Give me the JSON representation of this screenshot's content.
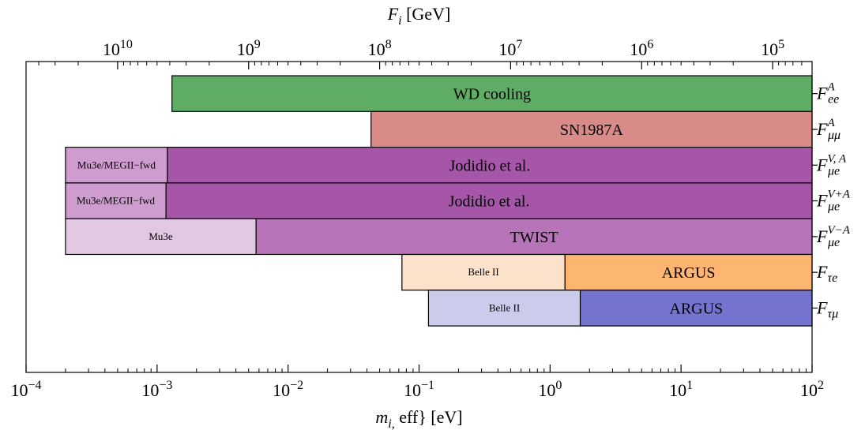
{
  "chart_data": {
    "type": "bar",
    "orientation": "horizontal",
    "x_scale": "log",
    "xlim": [
      0.0001,
      100
    ],
    "xlabel": "m_{i, eff} [eV]",
    "x_ticks": [
      {
        "value": 0.0001,
        "base": "10",
        "exp": "−4"
      },
      {
        "value": 0.001,
        "base": "10",
        "exp": "−3"
      },
      {
        "value": 0.01,
        "base": "10",
        "exp": "−2"
      },
      {
        "value": 0.1,
        "base": "10",
        "exp": "−1"
      },
      {
        "value": 1,
        "base": "10",
        "exp": "0"
      },
      {
        "value": 10,
        "base": "10",
        "exp": "1"
      },
      {
        "value": 100,
        "base": "10",
        "exp": "2"
      }
    ],
    "top_axis": {
      "label": "F_i [GeV]",
      "scale": "log",
      "ticks": [
        {
          "m_eff": 0.0005,
          "base": "10",
          "exp": "10"
        },
        {
          "m_eff": 0.005,
          "base": "10",
          "exp": "9"
        },
        {
          "m_eff": 0.05,
          "base": "10",
          "exp": "8"
        },
        {
          "m_eff": 0.5,
          "base": "10",
          "exp": "7"
        },
        {
          "m_eff": 5,
          "base": "10",
          "exp": "6"
        },
        {
          "m_eff": 50,
          "base": "10",
          "exp": "5"
        }
      ]
    },
    "grid": false,
    "rows": [
      {
        "label": {
          "main": "F",
          "sub": "ee",
          "sup": "A"
        },
        "bars": [
          {
            "label": "WD cooling",
            "from": 0.0013,
            "to": 100,
            "color": "#5fad64",
            "label_size": "large"
          }
        ]
      },
      {
        "label": {
          "main": "F",
          "sub": "μμ",
          "sup": "A"
        },
        "bars": [
          {
            "label": "SN1987A",
            "from": 0.043,
            "to": 100,
            "color": "#d88b89",
            "label_size": "large"
          }
        ]
      },
      {
        "label": {
          "main": "F",
          "sub": "μe",
          "sup": "V, A"
        },
        "bars": [
          {
            "label": "Mu3e/MEGII−fwd",
            "from": 0.0002,
            "to": 0.0012,
            "color": "#cf9ccf",
            "label_size": "small"
          },
          {
            "label": "Jodidio et al.",
            "from": 0.0012,
            "to": 100,
            "color": "#a656a8",
            "label_size": "large"
          }
        ]
      },
      {
        "label": {
          "main": "F",
          "sub": "μe",
          "sup": "V+A"
        },
        "bars": [
          {
            "label": "Mu3e/MEGII−fwd",
            "from": 0.0002,
            "to": 0.00117,
            "color": "#cf9ccf",
            "label_size": "small"
          },
          {
            "label": "Jodidio et al.",
            "from": 0.00117,
            "to": 100,
            "color": "#a656a8",
            "label_size": "large"
          }
        ]
      },
      {
        "label": {
          "main": "F",
          "sub": "μe",
          "sup": "V−A"
        },
        "bars": [
          {
            "label": "Mu3e",
            "from": 0.0002,
            "to": 0.0057,
            "color": "#e2c8e2",
            "label_size": "small"
          },
          {
            "label": "TWIST",
            "from": 0.0057,
            "to": 100,
            "color": "#b774b8",
            "label_size": "large"
          }
        ]
      },
      {
        "label": {
          "main": "F",
          "sub": "τe",
          "sup": ""
        },
        "bars": [
          {
            "label": "Belle II",
            "from": 0.074,
            "to": 1.3,
            "color": "#fde2cb",
            "label_size": "small"
          },
          {
            "label": "ARGUS",
            "from": 1.3,
            "to": 100,
            "color": "#fdb572",
            "label_size": "large"
          }
        ]
      },
      {
        "label": {
          "main": "F",
          "sub": "τμ",
          "sup": ""
        },
        "bars": [
          {
            "label": "Belle II",
            "from": 0.118,
            "to": 1.7,
            "color": "#cbcbec",
            "label_size": "small"
          },
          {
            "label": "ARGUS",
            "from": 1.7,
            "to": 100,
            "color": "#7474cf",
            "label_size": "large"
          }
        ]
      }
    ]
  }
}
